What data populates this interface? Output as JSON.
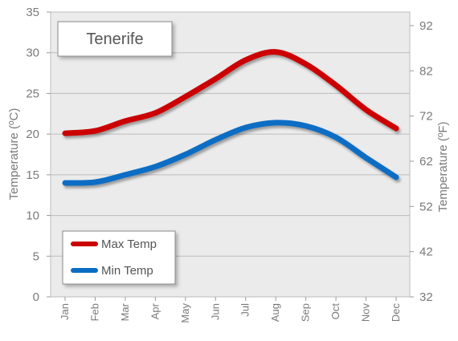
{
  "chart_data": {
    "type": "line",
    "title": "Tenerife",
    "categories": [
      "Jan",
      "Feb",
      "Mar",
      "Apr",
      "May",
      "Jun",
      "Jul",
      "Aug",
      "Sep",
      "Oct",
      "Nov",
      "Dec"
    ],
    "ylabel_left": "Temperature (ºC)",
    "ylabel_right": "Temperature (ºF)",
    "ylim_left": [
      0,
      35
    ],
    "yticks_left": [
      "0",
      "5",
      "10",
      "15",
      "20",
      "25",
      "30",
      "35"
    ],
    "yticks_right": [
      "32",
      "42",
      "52",
      "62",
      "72",
      "82",
      "92"
    ],
    "grid": true,
    "legend_position": "bottom-left",
    "series": [
      {
        "name": "Max Temp",
        "color": "#cc0000",
        "values": [
          20.1,
          20.4,
          21.6,
          22.6,
          24.6,
          26.8,
          29.1,
          30.1,
          28.6,
          26.0,
          23.0,
          20.7
        ]
      },
      {
        "name": "Min Temp",
        "color": "#0a6dc4",
        "values": [
          14.0,
          14.1,
          15.0,
          16.0,
          17.5,
          19.3,
          20.8,
          21.4,
          21.0,
          19.6,
          17.1,
          14.7
        ]
      }
    ]
  }
}
